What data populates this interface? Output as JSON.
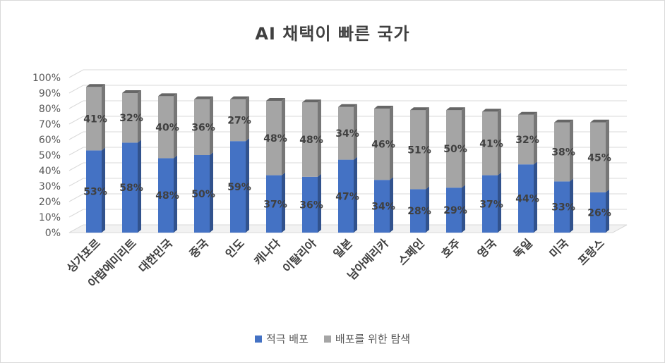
{
  "chart_data": {
    "type": "bar",
    "stacked": true,
    "title": "AI 채택이 빠른 국가",
    "categories": [
      "싱가포르",
      "아랍에미리트",
      "대한민국",
      "중국",
      "인도",
      "캐나다",
      "이탈리아",
      "일본",
      "남아메리카",
      "스페인",
      "호주",
      "영국",
      "독일",
      "미국",
      "프랑스"
    ],
    "series": [
      {
        "name": "적극 배포",
        "color": "#4472c4",
        "values": [
          53,
          58,
          48,
          50,
          59,
          37,
          36,
          47,
          34,
          28,
          29,
          37,
          44,
          33,
          26
        ]
      },
      {
        "name": "배포를 위한 탐색",
        "color": "#a5a5a5",
        "values": [
          41,
          32,
          40,
          36,
          27,
          48,
          48,
          34,
          46,
          51,
          50,
          41,
          32,
          38,
          45
        ]
      }
    ],
    "ylim": [
      0,
      100
    ],
    "yticks": [
      "0%",
      "10%",
      "20%",
      "30%",
      "40%",
      "50%",
      "60%",
      "70%",
      "80%",
      "90%",
      "100%"
    ],
    "grid": true,
    "legend_position": "bottom"
  }
}
